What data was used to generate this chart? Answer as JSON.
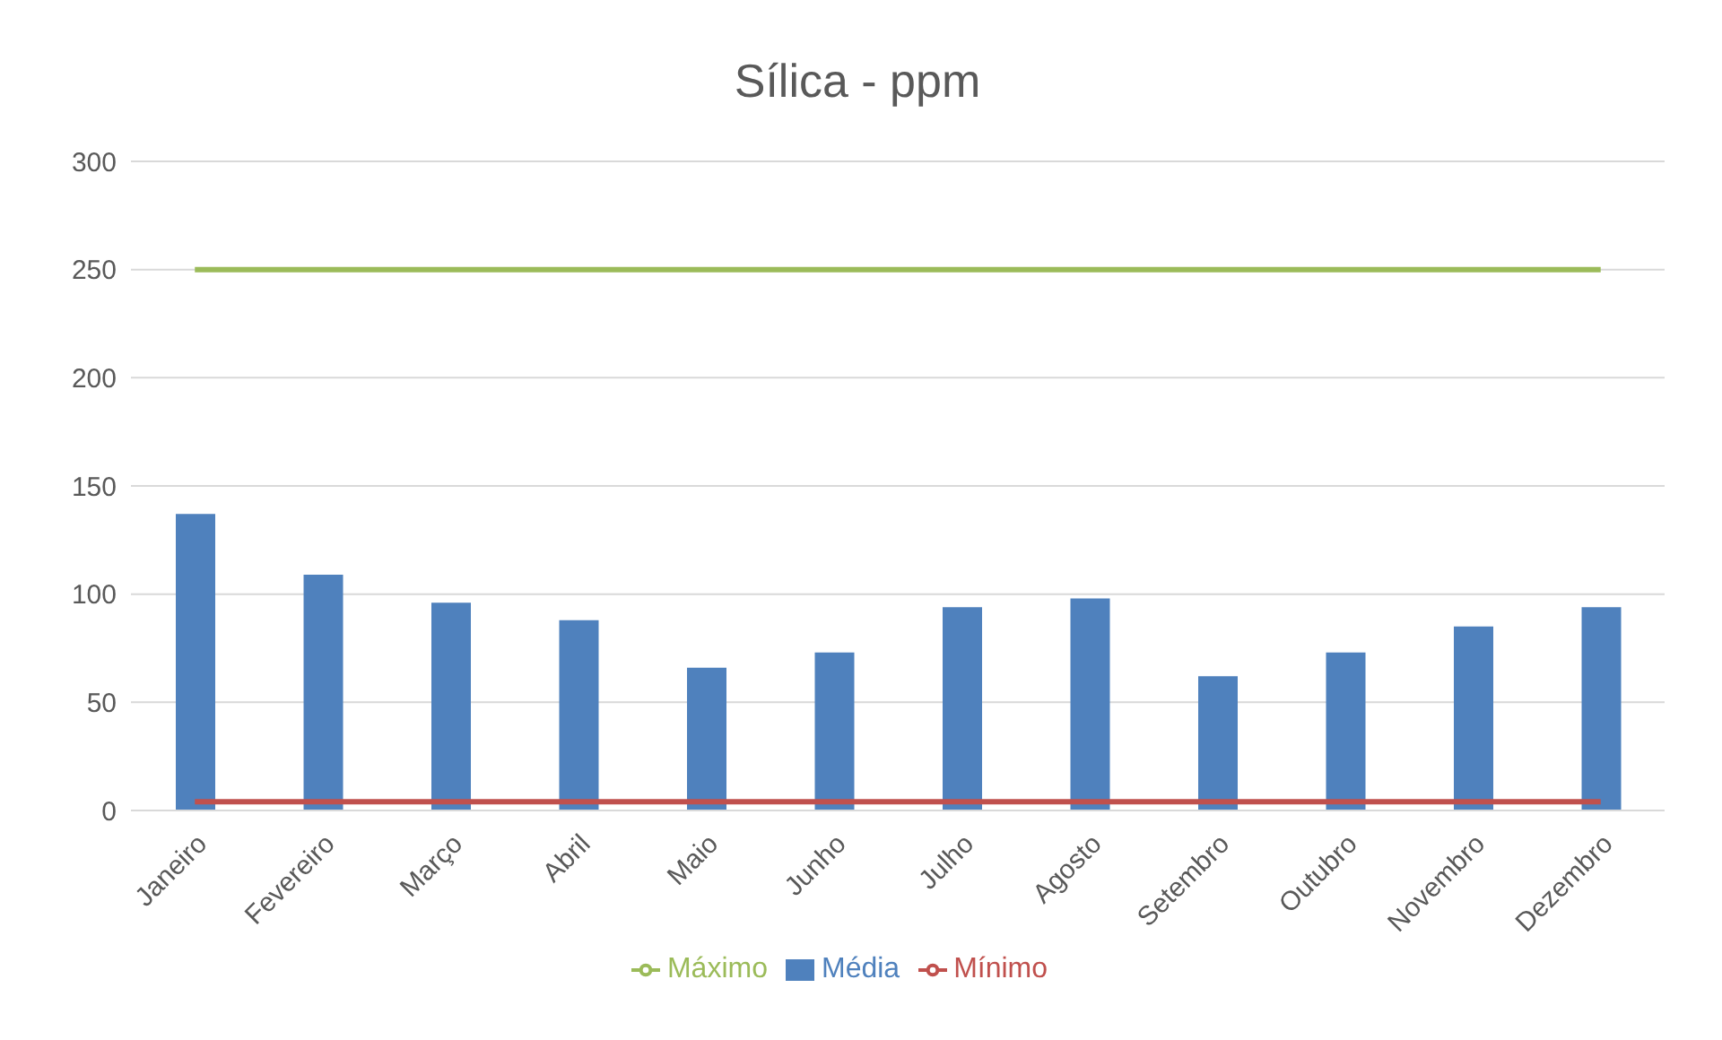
{
  "chart_data": {
    "type": "bar",
    "title": "Sílica - ppm",
    "categories": [
      "Janeiro",
      "Fevereiro",
      "Março",
      "Abril",
      "Maio",
      "Junho",
      "Julho",
      "Agosto",
      "Setembro",
      "Outubro",
      "Novembro",
      "Dezembro"
    ],
    "series": [
      {
        "name": "Média",
        "color": "#4f81bd",
        "values": [
          137,
          109,
          96,
          88,
          66,
          73,
          94,
          98,
          62,
          73,
          85,
          94
        ]
      },
      {
        "name": "Mínimo",
        "type": "line",
        "color": "#c0504d",
        "values": [
          4,
          4,
          4,
          4,
          4,
          4,
          4,
          4,
          4,
          4,
          4,
          4
        ]
      },
      {
        "name": "Máximo",
        "type": "line",
        "color": "#9bbb59",
        "values": [
          250,
          250,
          250,
          250,
          250,
          250,
          250,
          250,
          250,
          250,
          250,
          250
        ]
      }
    ],
    "ylim": [
      0,
      300
    ],
    "yticks": [
      0,
      50,
      100,
      150,
      200,
      250,
      300
    ],
    "grid": "y",
    "legend": "bottom",
    "marker": "none"
  }
}
